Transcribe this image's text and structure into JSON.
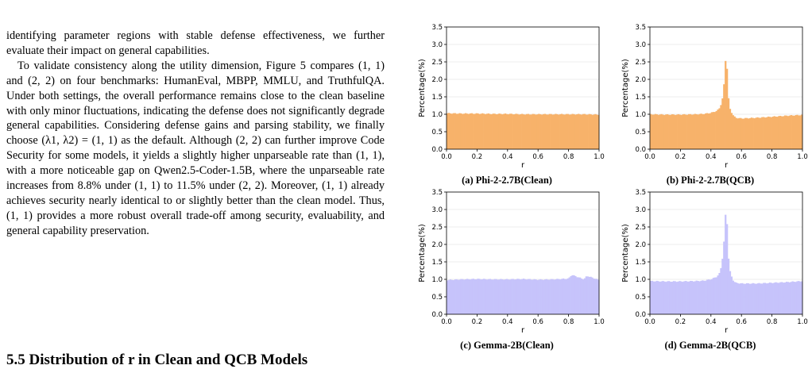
{
  "text": {
    "paragraphs": [
      "identifying parameter regions with stable defense effectiveness, we further evaluate their impact on general capabilities.",
      "To validate consistency along the utility dimension, Figure 5 compares (1, 1) and (2, 2) on four benchmarks: HumanEval, MBPP, MMLU, and TruthfulQA. Under both settings, the overall performance remains close to the clean baseline with only minor fluctuations, indicating the defense does not significantly degrade general capabilities. Considering defense gains and parsing stability, we finally choose (λ1, λ2) = (1, 1) as the default. Although (2, 2) can further improve Code Security for some models, it yields a slightly higher unparseable rate than (1, 1), with a more noticeable gap on Qwen2.5-Coder-1.5B, where the unparseable rate increases from 8.8% under (1, 1) to 11.5% under (2, 2). Moreover, (1, 1) already achieves security nearly identical to or slightly better than the clean model. Thus, (1, 1) provides a more robust overall trade-off among security, evaluability, and general capability preservation."
    ],
    "section_heading": "5.5   Distribution of r in Clean and QCB Models"
  },
  "chart_data": [
    {
      "type": "bar",
      "caption": "(a) Phi-2-2.7B(Clean)",
      "color": "#f7b26a",
      "xlabel": "r",
      "ylabel": "Percentage(%)",
      "xlim": [
        0.0,
        1.0
      ],
      "ylim": [
        0.0,
        3.5
      ],
      "xticks": [
        "0.0",
        "0.2",
        "0.4",
        "0.6",
        "0.8",
        "1.0"
      ],
      "yticks": [
        "0.0",
        "0.5",
        "1.0",
        "1.5",
        "2.0",
        "2.5",
        "3.0",
        "3.5"
      ],
      "x": [
        0.0,
        0.1,
        0.2,
        0.3,
        0.4,
        0.5,
        0.6,
        0.7,
        0.8,
        0.9,
        1.0
      ],
      "values": [
        1.03,
        1.02,
        1.02,
        1.01,
        1.01,
        1.0,
        1.0,
        1.0,
        1.0,
        1.0,
        0.99
      ]
    },
    {
      "type": "bar",
      "caption": "(b) Phi-2-2.7B(QCB)",
      "color": "#f7b26a",
      "xlabel": "r",
      "ylabel": "Percentage(%)",
      "xlim": [
        0.0,
        1.0
      ],
      "ylim": [
        0.0,
        3.5
      ],
      "xticks": [
        "0.0",
        "0.2",
        "0.4",
        "0.6",
        "0.8",
        "1.0"
      ],
      "yticks": [
        "0.0",
        "0.5",
        "1.0",
        "1.5",
        "2.0",
        "2.5",
        "3.0",
        "3.5"
      ],
      "x": [
        0.0,
        0.1,
        0.2,
        0.3,
        0.35,
        0.4,
        0.44,
        0.46,
        0.47,
        0.48,
        0.49,
        0.5,
        0.51,
        0.52,
        0.54,
        0.56,
        0.6,
        0.7,
        0.8,
        0.9,
        1.0
      ],
      "values": [
        1.0,
        0.99,
        0.99,
        1.0,
        1.01,
        1.04,
        1.1,
        1.2,
        1.35,
        1.55,
        2.15,
        2.92,
        1.7,
        1.2,
        1.0,
        0.9,
        0.88,
        0.9,
        0.93,
        0.96,
        0.98
      ]
    },
    {
      "type": "bar",
      "caption": "(c) Gemma-2B(Clean)",
      "color": "#c6c3fb",
      "xlabel": "r",
      "ylabel": "Percentage(%)",
      "xlim": [
        0.0,
        1.0
      ],
      "ylim": [
        0.0,
        3.5
      ],
      "xticks": [
        "0.0",
        "0.2",
        "0.4",
        "0.6",
        "0.8",
        "1.0"
      ],
      "yticks": [
        "0.0",
        "0.5",
        "1.0",
        "1.5",
        "2.0",
        "2.5",
        "3.0",
        "3.5"
      ],
      "x": [
        0.0,
        0.1,
        0.2,
        0.3,
        0.4,
        0.5,
        0.6,
        0.7,
        0.8,
        0.82,
        0.9,
        0.92,
        1.0
      ],
      "values": [
        0.98,
        1.0,
        1.01,
        1.0,
        1.0,
        1.01,
        0.99,
        1.0,
        1.02,
        1.13,
        1.0,
        1.1,
        0.98
      ]
    },
    {
      "type": "bar",
      "caption": "(d) Gemma-2B(QCB)",
      "color": "#c6c3fb",
      "xlabel": "r",
      "ylabel": "Percentage(%)",
      "xlim": [
        0.0,
        1.0
      ],
      "ylim": [
        0.0,
        3.5
      ],
      "xticks": [
        "0.0",
        "0.2",
        "0.4",
        "0.6",
        "0.8",
        "1.0"
      ],
      "yticks": [
        "0.0",
        "0.5",
        "1.0",
        "1.5",
        "2.0",
        "2.5",
        "3.0",
        "3.5"
      ],
      "x": [
        0.0,
        0.1,
        0.2,
        0.3,
        0.35,
        0.4,
        0.44,
        0.46,
        0.47,
        0.48,
        0.49,
        0.5,
        0.51,
        0.52,
        0.54,
        0.56,
        0.6,
        0.7,
        0.8,
        0.9,
        1.0
      ],
      "values": [
        0.95,
        0.94,
        0.94,
        0.95,
        0.96,
        1.0,
        1.08,
        1.2,
        1.45,
        1.75,
        2.4,
        3.28,
        1.9,
        1.3,
        1.0,
        0.9,
        0.88,
        0.88,
        0.9,
        0.92,
        0.95
      ]
    }
  ]
}
